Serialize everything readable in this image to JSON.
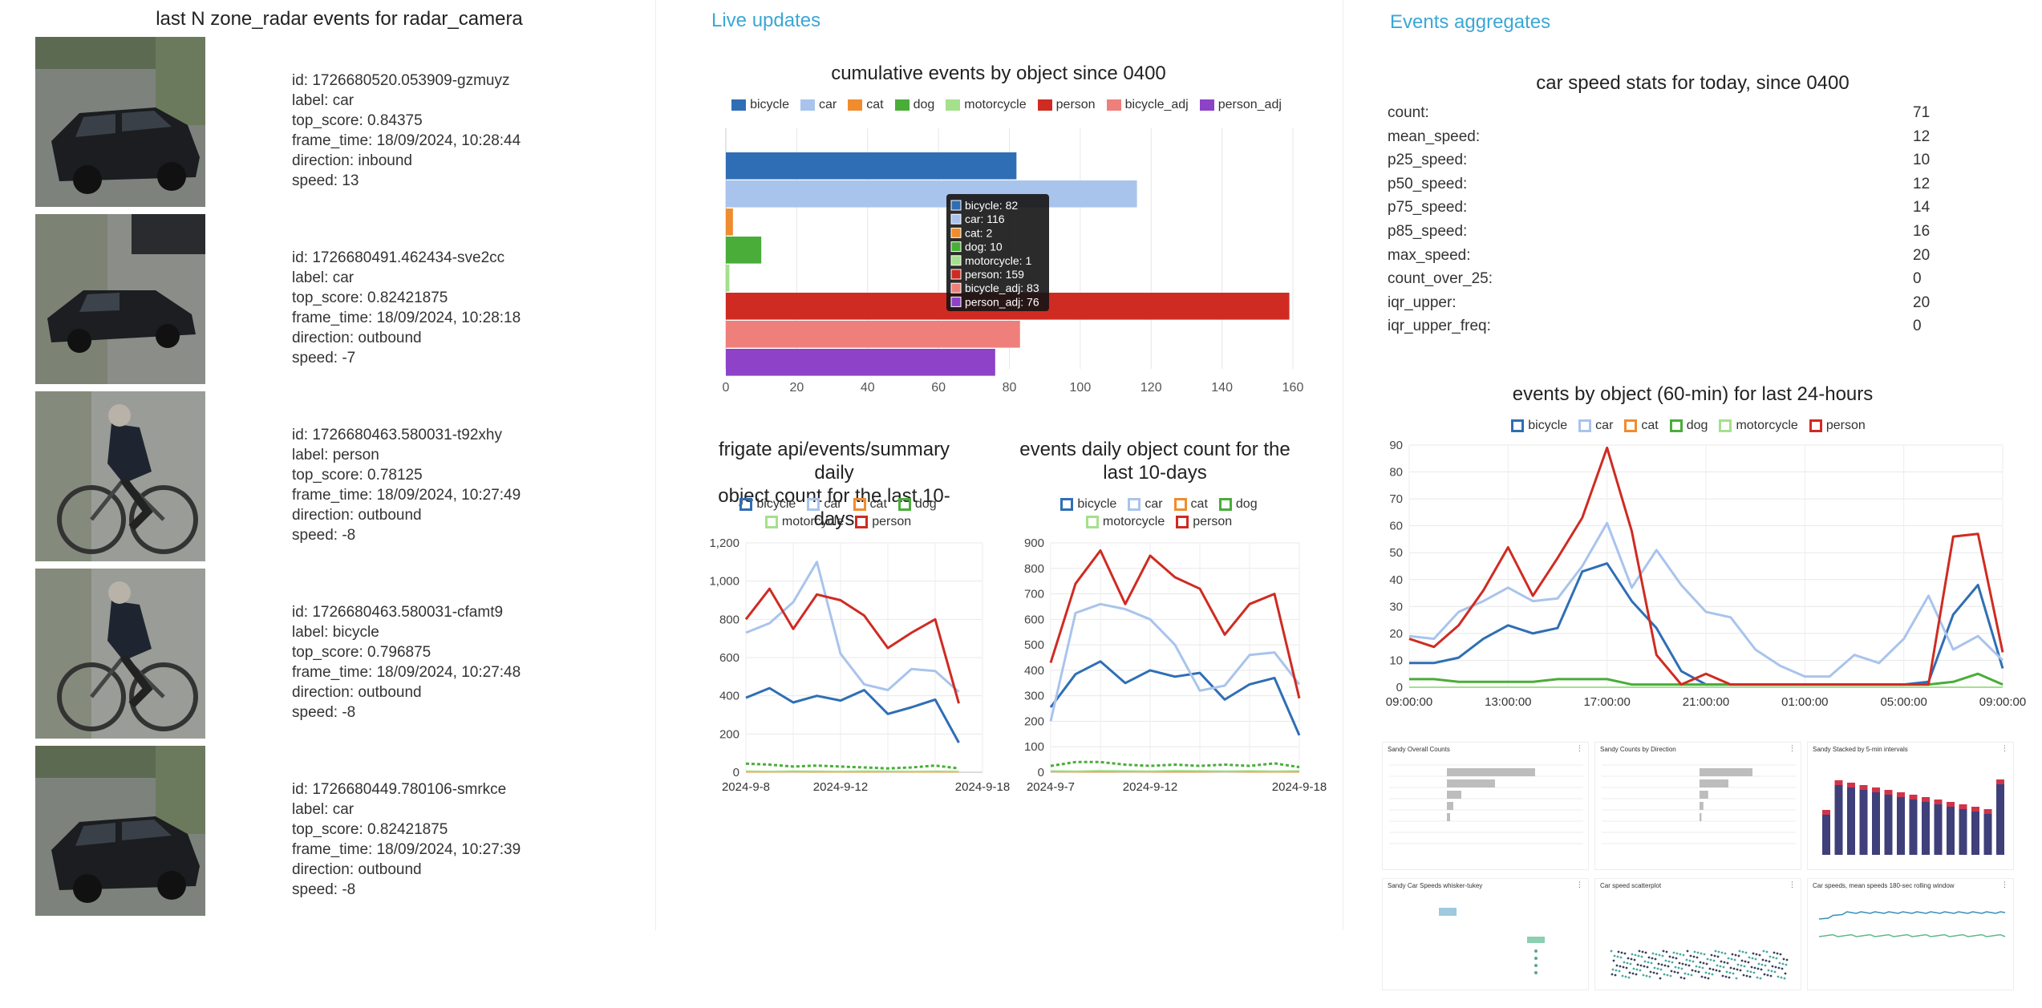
{
  "events_panel": {
    "title": "last N zone_radar events for radar_camera",
    "events": [
      {
        "id": "id: 1726680520.053909-gzmuyz",
        "label": "label: car",
        "top_score": "top_score: 0.84375",
        "frame_time": "frame_time: 18/09/2024, 10:28:44",
        "direction": "direction: inbound",
        "speed": "speed: 13"
      },
      {
        "id": "id: 1726680491.462434-sve2cc",
        "label": "label: car",
        "top_score": "top_score: 0.82421875",
        "frame_time": "frame_time: 18/09/2024, 10:28:18",
        "direction": "direction: outbound",
        "speed": "speed: -7"
      },
      {
        "id": "id: 1726680463.580031-t92xhy",
        "label": "label: person",
        "top_score": "top_score: 0.78125",
        "frame_time": "frame_time: 18/09/2024, 10:27:49",
        "direction": "direction: outbound",
        "speed": "speed: -8"
      },
      {
        "id": "id: 1726680463.580031-cfamt9",
        "label": "label: bicycle",
        "top_score": "top_score: 0.796875",
        "frame_time": "frame_time: 18/09/2024, 10:27:48",
        "direction": "direction: outbound",
        "speed": "speed: -8"
      },
      {
        "id": "id: 1726680449.780106-smrkce",
        "label": "label: car",
        "top_score": "top_score: 0.82421875",
        "frame_time": "frame_time: 18/09/2024, 10:27:39",
        "direction": "direction: outbound",
        "speed": "speed: -8"
      }
    ]
  },
  "live_panel": {
    "heading": "Live updates"
  },
  "agg_panel": {
    "heading": "Events aggregates",
    "stats_title": "car speed stats for today, since 0400",
    "stats": [
      {
        "key": "count:",
        "value": "71"
      },
      {
        "key": "mean_speed:",
        "value": "12"
      },
      {
        "key": "p25_speed:",
        "value": "10"
      },
      {
        "key": "p50_speed:",
        "value": "12"
      },
      {
        "key": "p75_speed:",
        "value": "14"
      },
      {
        "key": "p85_speed:",
        "value": "16"
      },
      {
        "key": "max_speed:",
        "value": "20"
      },
      {
        "key": "count_over_25:",
        "value": "0"
      },
      {
        "key": "iqr_upper:",
        "value": "20"
      },
      {
        "key": "iqr_upper_freq:",
        "value": "0"
      }
    ],
    "mini_panels": [
      "Sandy Overall Counts",
      "Sandy Counts by Direction",
      "Sandy Stacked by 5-min intervals",
      "Sandy Car Speeds whisker-tukey",
      "Car speed scatterplot",
      "Car speeds, mean speeds 180-sec rolling window"
    ]
  },
  "colors": {
    "bicycle": "#2f6eb5",
    "car": "#a9c4ec",
    "cat": "#f08c2e",
    "dog": "#4aad3a",
    "motorcycle": "#a5e08d",
    "person": "#cf2b22",
    "bicycle_adj": "#ef7f7a",
    "person_adj": "#8d42c7",
    "accent": "#3aa7d6"
  },
  "chart_data": [
    {
      "type": "bar",
      "orientation": "horizontal",
      "title": "cumulative events by object since 0400",
      "categories": [
        "bicycle",
        "car",
        "cat",
        "dog",
        "motorcycle",
        "person",
        "bicycle_adj",
        "person_adj"
      ],
      "values": [
        82,
        116,
        2,
        10,
        1,
        159,
        83,
        76
      ],
      "xlim": [
        0,
        160
      ],
      "xticks": [
        0,
        20,
        40,
        60,
        80,
        100,
        120,
        140,
        160
      ],
      "legend": "top",
      "tooltip": [
        "bicycle: 82",
        "car: 116",
        "cat: 2",
        "dog: 10",
        "motorcycle: 1",
        "person: 159",
        "bicycle_adj: 83",
        "person_adj: 76"
      ]
    },
    {
      "type": "line",
      "title": "frigate api/events/summary daily object count for the last 10-days",
      "title_lines": [
        "frigate api/events/summary daily",
        "object count for the last 10-days"
      ],
      "legend_names": [
        "bicycle",
        "car",
        "cat",
        "dog",
        "motorcycle",
        "person"
      ],
      "ylim": [
        0,
        1200
      ],
      "yticks": [
        0,
        200,
        400,
        600,
        800,
        "1,000",
        "1,200"
      ],
      "xtick_labels": [
        "2024-9-8",
        "2024-9-12",
        "2024-9-18"
      ],
      "xtick_index": [
        0,
        4,
        10
      ],
      "series": [
        {
          "key": "bicycle",
          "values": [
            390,
            440,
            365,
            400,
            375,
            430,
            305,
            340,
            380,
            155
          ]
        },
        {
          "key": "car",
          "values": [
            730,
            780,
            890,
            1100,
            620,
            460,
            430,
            540,
            530,
            420
          ]
        },
        {
          "key": "cat",
          "values": [
            2,
            2,
            3,
            2,
            2,
            2,
            3,
            2,
            2,
            2
          ]
        },
        {
          "key": "dog",
          "values": [
            45,
            40,
            30,
            35,
            30,
            25,
            20,
            25,
            35,
            20
          ]
        },
        {
          "key": "motorcycle",
          "values": [
            5,
            4,
            6,
            5,
            4,
            6,
            5,
            4,
            5,
            4
          ]
        },
        {
          "key": "person",
          "values": [
            800,
            960,
            750,
            930,
            900,
            820,
            650,
            730,
            800,
            360
          ]
        }
      ]
    },
    {
      "type": "line",
      "title": "events daily object count for the last 10-days",
      "title_lines": [
        "events daily object count for the",
        "last 10-days"
      ],
      "legend_names": [
        "bicycle",
        "car",
        "cat",
        "dog",
        "motorcycle",
        "person"
      ],
      "ylim": [
        0,
        900
      ],
      "yticks": [
        0,
        100,
        200,
        300,
        400,
        500,
        600,
        700,
        800,
        900
      ],
      "xtick_labels": [
        "2024-9-7",
        "2024-9-12",
        "2024-9-18"
      ],
      "xtick_index": [
        0,
        4,
        10
      ],
      "series": [
        {
          "key": "bicycle",
          "values": [
            255,
            385,
            435,
            350,
            400,
            375,
            390,
            285,
            345,
            370,
            145
          ]
        },
        {
          "key": "car",
          "values": [
            200,
            625,
            660,
            640,
            600,
            500,
            320,
            340,
            460,
            470,
            345
          ]
        },
        {
          "key": "cat",
          "values": [
            3,
            2,
            2,
            3,
            2,
            2,
            2,
            3,
            2,
            2,
            2
          ]
        },
        {
          "key": "dog",
          "values": [
            25,
            40,
            40,
            30,
            25,
            30,
            25,
            30,
            25,
            35,
            20
          ]
        },
        {
          "key": "motorcycle",
          "values": [
            5,
            4,
            6,
            5,
            4,
            6,
            5,
            4,
            5,
            4,
            5
          ]
        },
        {
          "key": "person",
          "values": [
            430,
            740,
            870,
            660,
            850,
            765,
            720,
            540,
            660,
            700,
            290
          ]
        }
      ]
    },
    {
      "type": "line",
      "title": "events by object (60-min) for last 24-hours",
      "legend_names": [
        "bicycle",
        "car",
        "cat",
        "dog",
        "motorcycle",
        "person"
      ],
      "ylim": [
        0,
        90
      ],
      "yticks": [
        0,
        10,
        20,
        30,
        40,
        50,
        60,
        70,
        80,
        90
      ],
      "xtick_labels": [
        "09:00:00",
        "13:00:00",
        "17:00:00",
        "21:00:00",
        "01:00:00",
        "05:00:00",
        "09:00:00"
      ],
      "xtick_index": [
        0,
        4,
        8,
        12,
        16,
        20,
        24
      ],
      "series": [
        {
          "key": "bicycle",
          "values": [
            9,
            9,
            11,
            18,
            23,
            20,
            22,
            43,
            46,
            32,
            22,
            6,
            1,
            1,
            1,
            1,
            1,
            1,
            1,
            1,
            1,
            2,
            27,
            38,
            7
          ]
        },
        {
          "key": "car",
          "values": [
            19,
            18,
            28,
            32,
            37,
            32,
            33,
            45,
            61,
            37,
            51,
            38,
            28,
            26,
            14,
            8,
            4,
            4,
            12,
            9,
            18,
            34,
            14,
            19,
            10
          ]
        },
        {
          "key": "cat",
          "values": [
            0,
            0,
            0,
            0,
            0,
            0,
            0,
            0,
            0,
            0,
            0,
            0,
            0,
            0,
            0,
            0,
            0,
            0,
            0,
            0,
            0,
            0,
            0,
            0,
            0
          ]
        },
        {
          "key": "dog",
          "values": [
            3,
            3,
            2,
            2,
            2,
            2,
            3,
            3,
            3,
            1,
            1,
            1,
            1,
            1,
            1,
            1,
            1,
            1,
            1,
            1,
            1,
            1,
            2,
            5,
            1
          ]
        },
        {
          "key": "motorcycle",
          "values": [
            0,
            0,
            0,
            0,
            0,
            0,
            0,
            0,
            0,
            0,
            0,
            0,
            0,
            0,
            0,
            0,
            0,
            0,
            0,
            0,
            0,
            0,
            0,
            0,
            0
          ]
        },
        {
          "key": "person",
          "values": [
            18,
            15,
            23,
            36,
            52,
            34,
            48,
            63,
            89,
            58,
            12,
            1,
            5,
            1,
            1,
            1,
            1,
            1,
            1,
            1,
            1,
            1,
            56,
            57,
            13
          ]
        }
      ]
    }
  ]
}
